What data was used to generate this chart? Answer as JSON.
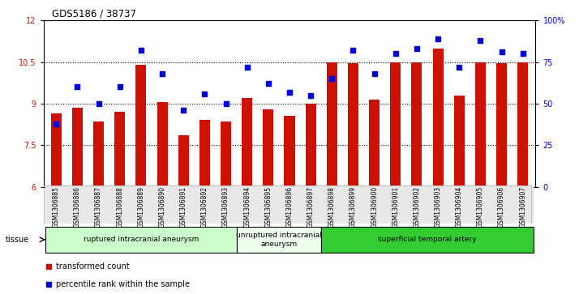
{
  "title": "GDS5186 / 38737",
  "samples": [
    "GSM1306885",
    "GSM1306886",
    "GSM1306887",
    "GSM1306888",
    "GSM1306889",
    "GSM1306890",
    "GSM1306891",
    "GSM1306892",
    "GSM1306893",
    "GSM1306894",
    "GSM1306895",
    "GSM1306896",
    "GSM1306897",
    "GSM1306898",
    "GSM1306899",
    "GSM1306900",
    "GSM1306901",
    "GSM1306902",
    "GSM1306903",
    "GSM1306904",
    "GSM1306905",
    "GSM1306906",
    "GSM1306907"
  ],
  "bar_values": [
    8.65,
    8.85,
    8.35,
    8.7,
    10.4,
    9.05,
    7.85,
    8.4,
    8.35,
    9.2,
    8.8,
    8.55,
    9.0,
    10.5,
    10.45,
    9.15,
    10.5,
    10.5,
    11.0,
    9.3,
    10.5,
    10.45,
    10.5
  ],
  "percentile_values": [
    38,
    60,
    50,
    60,
    82,
    68,
    46,
    56,
    50,
    72,
    62,
    57,
    55,
    65,
    82,
    68,
    80,
    83,
    89,
    72,
    88,
    81,
    80
  ],
  "ylim_left": [
    6,
    12
  ],
  "ylim_right": [
    0,
    100
  ],
  "yticks_left": [
    6,
    7.5,
    9,
    10.5,
    12
  ],
  "yticks_right": [
    0,
    25,
    50,
    75,
    100
  ],
  "bar_color": "#cc1100",
  "dot_color": "#0000dd",
  "groups": [
    {
      "label": "ruptured intracranial aneurysm",
      "start": 0,
      "end": 9,
      "color": "#ccffcc"
    },
    {
      "label": "unruptured intracranial\naneurysm",
      "start": 9,
      "end": 13,
      "color": "#eeffee"
    },
    {
      "label": "superficial temporal artery",
      "start": 13,
      "end": 23,
      "color": "#33cc33"
    }
  ],
  "legend_bar_label": "transformed count",
  "legend_dot_label": "percentile rank within the sample",
  "tissue_label": "tissue"
}
